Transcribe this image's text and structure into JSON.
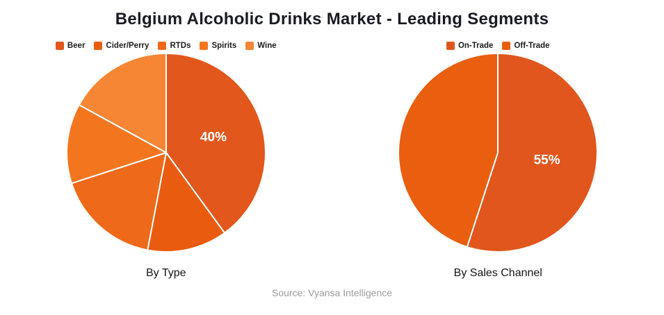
{
  "title": "Belgium Alcoholic Drinks Market - Leading Segments",
  "source": "Source: Vyansa Intelligence",
  "colors": {
    "background": "#ffffff",
    "title_text": "#1a1a23",
    "legend_text": "#1c1c1c",
    "caption_text": "#141414",
    "source_text": "#9b9b9b",
    "slice_divider": "#ffffff",
    "slice_label_text": "#ffffff"
  },
  "chart_data": [
    {
      "type": "pie",
      "caption": "By Type",
      "legend_position": "top",
      "start_angle_deg": 0,
      "direction": "clockwise",
      "slices": [
        {
          "label": "Beer",
          "value_pct": 40,
          "color": "#e2571c",
          "data_label": "40%"
        },
        {
          "label": "Cider/Perry",
          "value_pct": 13,
          "color": "#e95c10",
          "data_label": ""
        },
        {
          "label": "RTDs",
          "value_pct": 17,
          "color": "#ee6a1a",
          "data_label": ""
        },
        {
          "label": "Spirits",
          "value_pct": 13,
          "color": "#f3761f",
          "data_label": ""
        },
        {
          "label": "Wine",
          "value_pct": 17,
          "color": "#f68634",
          "data_label": ""
        }
      ]
    },
    {
      "type": "pie",
      "caption": "By Sales Channel",
      "legend_position": "top",
      "start_angle_deg": 0,
      "direction": "clockwise",
      "slices": [
        {
          "label": "On-Trade",
          "value_pct": 55,
          "color": "#e1561c",
          "data_label": "55%"
        },
        {
          "label": "Off-Trade",
          "value_pct": 45,
          "color": "#ea5e0f",
          "data_label": ""
        }
      ]
    }
  ]
}
